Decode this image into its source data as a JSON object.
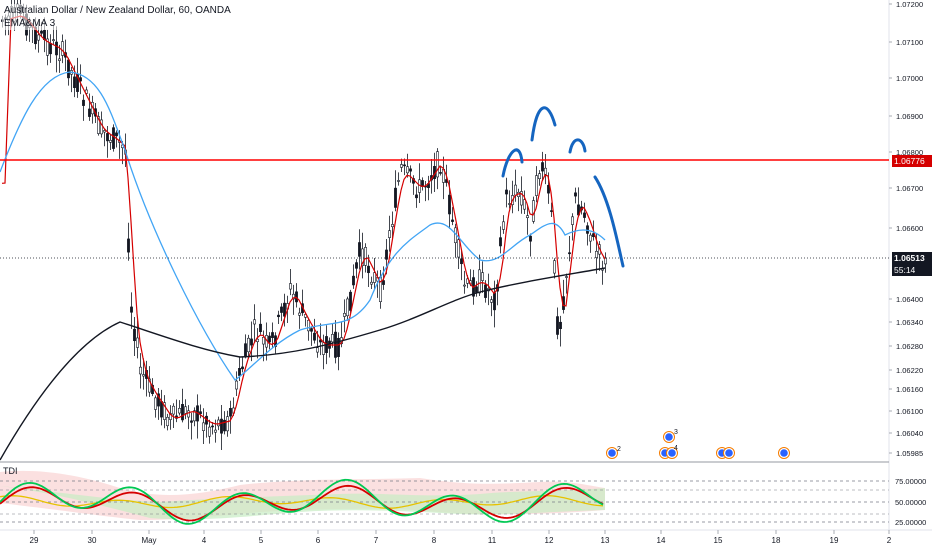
{
  "legend": {
    "symbol_line": "Australian Dollar / New Zealand Dollar, 60, OANDA",
    "indicator_line": "EMA&MA 3"
  },
  "price_axis": {
    "ticks": [
      "1.07200",
      "1.07100",
      "1.07000",
      "1.06900",
      "1.06800",
      "1.06700",
      "1.06600",
      "1.06400",
      "1.06340",
      "1.06280",
      "1.06220",
      "1.06160",
      "1.06100",
      "1.06040",
      "1.05985"
    ]
  },
  "price_tags": {
    "resistance": "1.06776",
    "current": "1.06513",
    "countdown": "55:14"
  },
  "time_axis": {
    "labels": [
      "29",
      "30",
      "May",
      "4",
      "5",
      "6",
      "7",
      "8",
      "11",
      "12",
      "13",
      "14",
      "15",
      "18",
      "19",
      "2"
    ]
  },
  "oscillator": {
    "name": "TDI",
    "ticks": [
      "75.00000",
      "50.00000",
      "25.00000"
    ]
  },
  "event_badges": [
    "2",
    "3",
    "4"
  ],
  "colors": {
    "candle": "#131722",
    "ema_fast": "#d50000",
    "ma_blue": "#42a5f5",
    "ma_black": "#131722",
    "resistance_line": "#ff0000",
    "drawing": "#1565c0",
    "tdi_green": "#00c853",
    "tdi_red": "#d50000"
  }
}
